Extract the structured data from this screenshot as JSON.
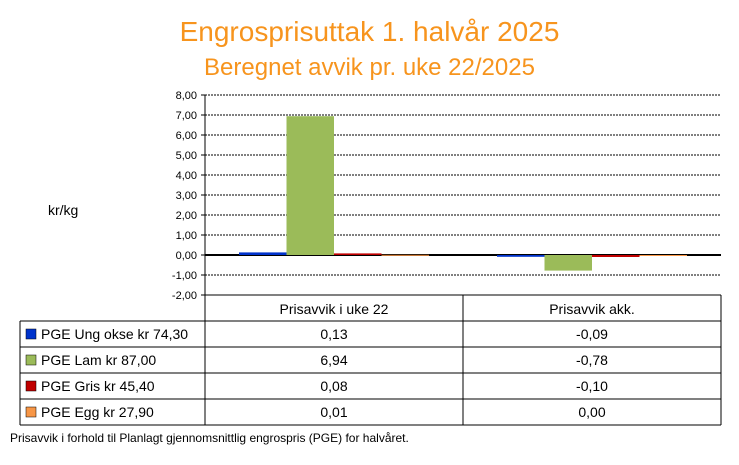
{
  "title": "Engrosprisuttak 1. halvår 2025",
  "subtitle": "Beregnet avvik pr. uke 22/2025",
  "footnote": "Prisavvik i forhold til Planlagt gjennomsnittlig engrospris (PGE) for halvåret.",
  "chart_data": {
    "type": "bar",
    "ylabel": "kr/kg",
    "ylim": [
      -2,
      8
    ],
    "yticks": [
      "8,00",
      "7,00",
      "6,00",
      "5,00",
      "4,00",
      "3,00",
      "2,00",
      "1,00",
      "0,00",
      "-1,00",
      "-2,00"
    ],
    "grid": true,
    "categories": [
      "Prisavvik i uke 22",
      "Prisavvik akk."
    ],
    "series": [
      {
        "name": "PGE Ung okse kr 74,30",
        "color": "#0033cc",
        "values": [
          0.13,
          -0.09
        ],
        "labels": [
          "0,13",
          "-0,09"
        ]
      },
      {
        "name": "PGE Lam kr 87,00",
        "color": "#9bbb59",
        "values": [
          6.94,
          -0.78
        ],
        "labels": [
          "6,94",
          "-0,78"
        ]
      },
      {
        "name": "PGE Gris kr 45,40",
        "color": "#c00000",
        "values": [
          0.08,
          -0.1
        ],
        "labels": [
          "0,08",
          "-0,10"
        ]
      },
      {
        "name": "PGE Egg kr 27,90",
        "color": "#f79646",
        "values": [
          0.01,
          0.0
        ],
        "labels": [
          "0,01",
          "0,00"
        ]
      }
    ]
  }
}
